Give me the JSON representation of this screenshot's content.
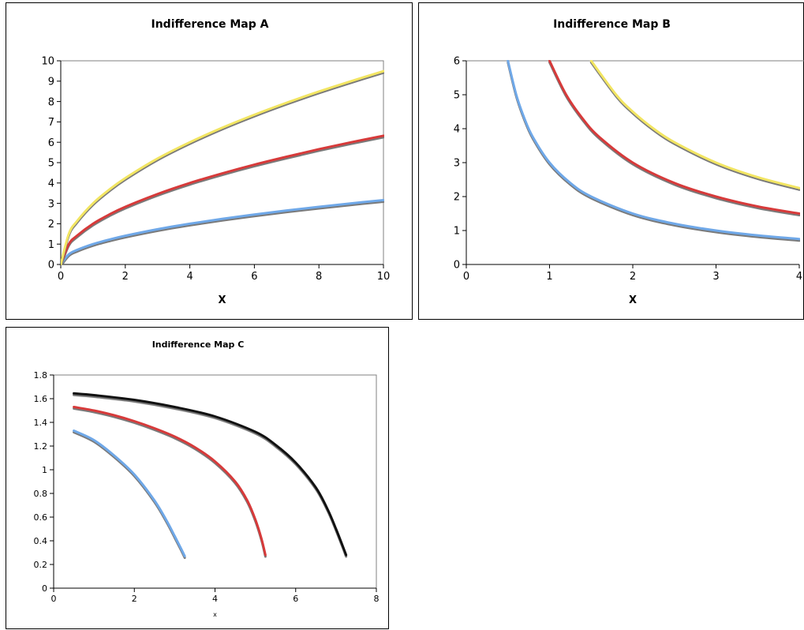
{
  "chart_data": [
    {
      "type": "line",
      "title": "Indifference Map A",
      "xlabel": "X",
      "ylabel": "",
      "xlim": [
        0,
        10
      ],
      "ylim": [
        0,
        10
      ],
      "xticks": [
        "0",
        "2",
        "4",
        "6",
        "8",
        "10"
      ],
      "yticks": [
        "0",
        "1",
        "2",
        "3",
        "4",
        "5",
        "6",
        "7",
        "8",
        "9",
        "10"
      ],
      "grid": false,
      "legend": "none",
      "series": [
        {
          "color": "#6fa8e8",
          "x": [
            0,
            0.25,
            0.5,
            1,
            1.5,
            2,
            3,
            4,
            5,
            6,
            7,
            8,
            9,
            10
          ],
          "y": [
            0,
            0.5,
            0.71,
            1.0,
            1.22,
            1.41,
            1.73,
            2.0,
            2.24,
            2.45,
            2.65,
            2.83,
            3.0,
            3.16
          ]
        },
        {
          "color": "#d73a3a",
          "x": [
            0,
            0.25,
            0.5,
            1,
            1.5,
            2,
            3,
            4,
            5,
            6,
            7,
            8,
            9,
            10
          ],
          "y": [
            0,
            1.0,
            1.41,
            2.0,
            2.45,
            2.83,
            3.46,
            4.0,
            4.47,
            4.9,
            5.29,
            5.66,
            6.0,
            6.32
          ]
        },
        {
          "color": "#f2e562",
          "x": [
            0,
            0.25,
            0.5,
            1,
            1.5,
            2,
            3,
            4,
            5,
            6,
            7,
            8,
            9,
            10
          ],
          "y": [
            0,
            1.5,
            2.12,
            3.0,
            3.67,
            4.24,
            5.2,
            6.0,
            6.71,
            7.35,
            7.94,
            8.49,
            9.0,
            9.49
          ]
        }
      ]
    },
    {
      "type": "line",
      "title": "Indifference Map B",
      "xlabel": "X",
      "ylabel": "",
      "xlim": [
        0,
        4
      ],
      "ylim": [
        0,
        6
      ],
      "xticks": [
        "0",
        "1",
        "2",
        "3",
        "4"
      ],
      "yticks": [
        "0",
        "1",
        "2",
        "3",
        "4",
        "5",
        "6"
      ],
      "grid": false,
      "legend": "none",
      "series": [
        {
          "color": "#6fa8e8",
          "x": [
            0.5,
            0.6,
            0.7,
            0.8,
            1,
            1.25,
            1.5,
            2,
            2.5,
            3,
            3.5,
            4
          ],
          "y": [
            6.0,
            5.0,
            4.29,
            3.75,
            3.0,
            2.4,
            2.0,
            1.5,
            1.2,
            1.0,
            0.857,
            0.75
          ]
        },
        {
          "color": "#d73a3a",
          "x": [
            1,
            1.2,
            1.4,
            1.6,
            2,
            2.5,
            3,
            3.5,
            4
          ],
          "y": [
            6.0,
            5.0,
            4.29,
            3.75,
            3.0,
            2.4,
            2.0,
            1.71,
            1.5
          ]
        },
        {
          "color": "#f2e562",
          "x": [
            1.5,
            1.8,
            2,
            2.25,
            2.5,
            3,
            3.5,
            4
          ],
          "y": [
            6.0,
            5.0,
            4.5,
            4.0,
            3.6,
            3.0,
            2.57,
            2.25
          ]
        }
      ]
    },
    {
      "type": "line",
      "title": "Indifference Map C",
      "xlabel": "x",
      "ylabel": "",
      "xlim": [
        0,
        8
      ],
      "ylim": [
        0,
        1.8
      ],
      "xticks": [
        "0",
        "2",
        "4",
        "6",
        "8"
      ],
      "yticks": [
        "0",
        "0.2",
        "0.4",
        "0.6",
        "0.8",
        "1",
        "1.2",
        "1.4",
        "1.6",
        "1.8"
      ],
      "grid": false,
      "legend": "none",
      "series": [
        {
          "color": "#6fa8e8",
          "x": [
            0.5,
            1,
            1.5,
            2,
            2.5,
            2.8,
            3.0,
            3.15,
            3.25
          ],
          "y": [
            1.33,
            1.25,
            1.12,
            0.96,
            0.74,
            0.57,
            0.44,
            0.34,
            0.27
          ]
        },
        {
          "color": "#d73a3a",
          "x": [
            0.5,
            1,
            1.5,
            2,
            2.5,
            3,
            3.5,
            4,
            4.5,
            4.8,
            5.0,
            5.15,
            5.25
          ],
          "y": [
            1.53,
            1.5,
            1.46,
            1.41,
            1.35,
            1.28,
            1.19,
            1.07,
            0.9,
            0.74,
            0.58,
            0.42,
            0.28
          ]
        },
        {
          "color": "#111111",
          "x": [
            0.5,
            1,
            2,
            3,
            4,
            5,
            5.5,
            6,
            6.5,
            6.8,
            7.0,
            7.15,
            7.25
          ],
          "y": [
            1.645,
            1.63,
            1.59,
            1.53,
            1.45,
            1.32,
            1.21,
            1.06,
            0.85,
            0.66,
            0.5,
            0.37,
            0.28
          ]
        }
      ]
    }
  ]
}
